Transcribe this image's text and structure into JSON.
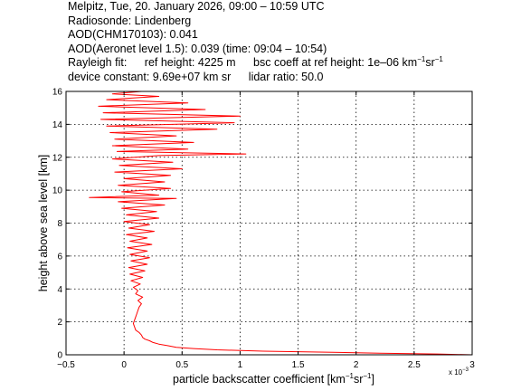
{
  "header": {
    "line1": "Melpitz, Tue, 20. January 2026, 09:00 – 10:59 UTC",
    "line2": "Radiosonde: Lindenberg",
    "line3": "AOD(CHM170103): 0.041",
    "line4": "AOD(Aeronet level 1.5): 0.039  (time: 09:04 – 10:54)",
    "rayleigh_label": "Rayleigh fit:",
    "ref_height": "ref height: 4225 m",
    "bsc_coeff_prefix": "bsc coeff at ref height: 1e–06 km",
    "unit_exp1": "−1",
    "unit_sr": "sr",
    "unit_exp2": "−1",
    "device_constant": "device constant: 9.69e+07 km sr",
    "lidar_ratio": "lidar ratio: 50.0"
  },
  "chart_data": {
    "type": "line",
    "xlabel_prefix": "particle backscatter coefficient [km",
    "xlabel_exp1": "−1",
    "xlabel_sr": "sr",
    "xlabel_exp2": "−1",
    "xlabel_suffix": "]",
    "ylabel": "height above sea level [km]",
    "x_scale_label": "x 10",
    "x_scale_exp": "−3",
    "xlim": [
      -0.5,
      3
    ],
    "ylim": [
      0,
      16
    ],
    "xticks": [
      "−0.5",
      "0",
      "0.5",
      "1",
      "1.5",
      "2",
      "2.5",
      "3"
    ],
    "xtick_values": [
      -0.5,
      0,
      0.5,
      1,
      1.5,
      2,
      2.5,
      3
    ],
    "yticks": [
      "0",
      "2",
      "4",
      "6",
      "8",
      "10",
      "12",
      "14",
      "16"
    ],
    "ytick_values": [
      0,
      2,
      4,
      6,
      8,
      10,
      12,
      14,
      16
    ],
    "grid": true,
    "line_color": "#ff0000",
    "series": [
      {
        "values_unit_note": "x in units of 1e-3 km^-1 sr^-1, y in km",
        "points": [
          [
            3.0,
            0.0
          ],
          [
            2.7,
            0.05
          ],
          [
            2.2,
            0.1
          ],
          [
            1.8,
            0.15
          ],
          [
            1.2,
            0.22
          ],
          [
            0.8,
            0.3
          ],
          [
            0.6,
            0.38
          ],
          [
            0.45,
            0.45
          ],
          [
            0.38,
            0.55
          ],
          [
            0.3,
            0.65
          ],
          [
            0.25,
            0.75
          ],
          [
            0.22,
            0.85
          ],
          [
            0.18,
            0.95
          ],
          [
            0.16,
            1.05
          ],
          [
            0.15,
            1.2
          ],
          [
            0.13,
            1.35
          ],
          [
            0.1,
            1.5
          ],
          [
            0.09,
            1.7
          ],
          [
            0.08,
            1.9
          ],
          [
            0.09,
            2.1
          ],
          [
            0.1,
            2.3
          ],
          [
            0.11,
            2.5
          ],
          [
            0.12,
            2.7
          ],
          [
            0.13,
            2.9
          ],
          [
            0.15,
            3.1
          ],
          [
            0.12,
            3.3
          ],
          [
            0.16,
            3.5
          ],
          [
            0.1,
            3.7
          ],
          [
            0.12,
            3.9
          ],
          [
            0.08,
            4.1
          ],
          [
            0.14,
            4.3
          ],
          [
            0.06,
            4.5
          ],
          [
            0.16,
            4.7
          ],
          [
            0.05,
            4.9
          ],
          [
            0.18,
            5.1
          ],
          [
            0.04,
            5.3
          ],
          [
            0.2,
            5.5
          ],
          [
            0.06,
            5.7
          ],
          [
            0.22,
            5.9
          ],
          [
            0.05,
            6.1
          ],
          [
            0.2,
            6.3
          ],
          [
            0.03,
            6.5
          ],
          [
            0.24,
            6.7
          ],
          [
            0.05,
            6.9
          ],
          [
            0.2,
            7.1
          ],
          [
            0.02,
            7.3
          ],
          [
            0.26,
            7.5
          ],
          [
            0.04,
            7.7
          ],
          [
            0.22,
            7.9
          ],
          [
            0.0,
            8.1
          ],
          [
            0.3,
            8.3
          ],
          [
            0.02,
            8.5
          ],
          [
            0.28,
            8.7
          ],
          [
            -0.02,
            8.9
          ],
          [
            0.35,
            9.1
          ],
          [
            -0.05,
            9.3
          ],
          [
            0.45,
            9.5
          ],
          [
            -0.3,
            9.55
          ],
          [
            0.3,
            9.7
          ],
          [
            -0.02,
            9.9
          ],
          [
            0.4,
            10.1
          ],
          [
            -0.05,
            10.3
          ],
          [
            0.35,
            10.5
          ],
          [
            0.0,
            10.7
          ],
          [
            0.4,
            10.9
          ],
          [
            -0.08,
            11.1
          ],
          [
            0.5,
            11.3
          ],
          [
            -0.04,
            11.5
          ],
          [
            0.42,
            11.7
          ],
          [
            -0.1,
            11.9
          ],
          [
            0.3,
            12.1
          ],
          [
            1.05,
            12.2
          ],
          [
            -0.06,
            12.35
          ],
          [
            0.55,
            12.5
          ],
          [
            -0.1,
            12.7
          ],
          [
            0.6,
            12.9
          ],
          [
            -0.08,
            13.1
          ],
          [
            0.45,
            13.3
          ],
          [
            -0.12,
            13.5
          ],
          [
            0.8,
            13.7
          ],
          [
            -0.15,
            13.9
          ],
          [
            0.95,
            14.1
          ],
          [
            -0.2,
            14.3
          ],
          [
            1.0,
            14.5
          ],
          [
            -0.18,
            14.7
          ],
          [
            0.7,
            14.9
          ],
          [
            -0.22,
            15.1
          ],
          [
            0.55,
            15.3
          ],
          [
            -0.15,
            15.5
          ],
          [
            0.3,
            15.7
          ],
          [
            -0.1,
            15.85
          ],
          [
            0.15,
            16.0
          ]
        ]
      }
    ]
  }
}
